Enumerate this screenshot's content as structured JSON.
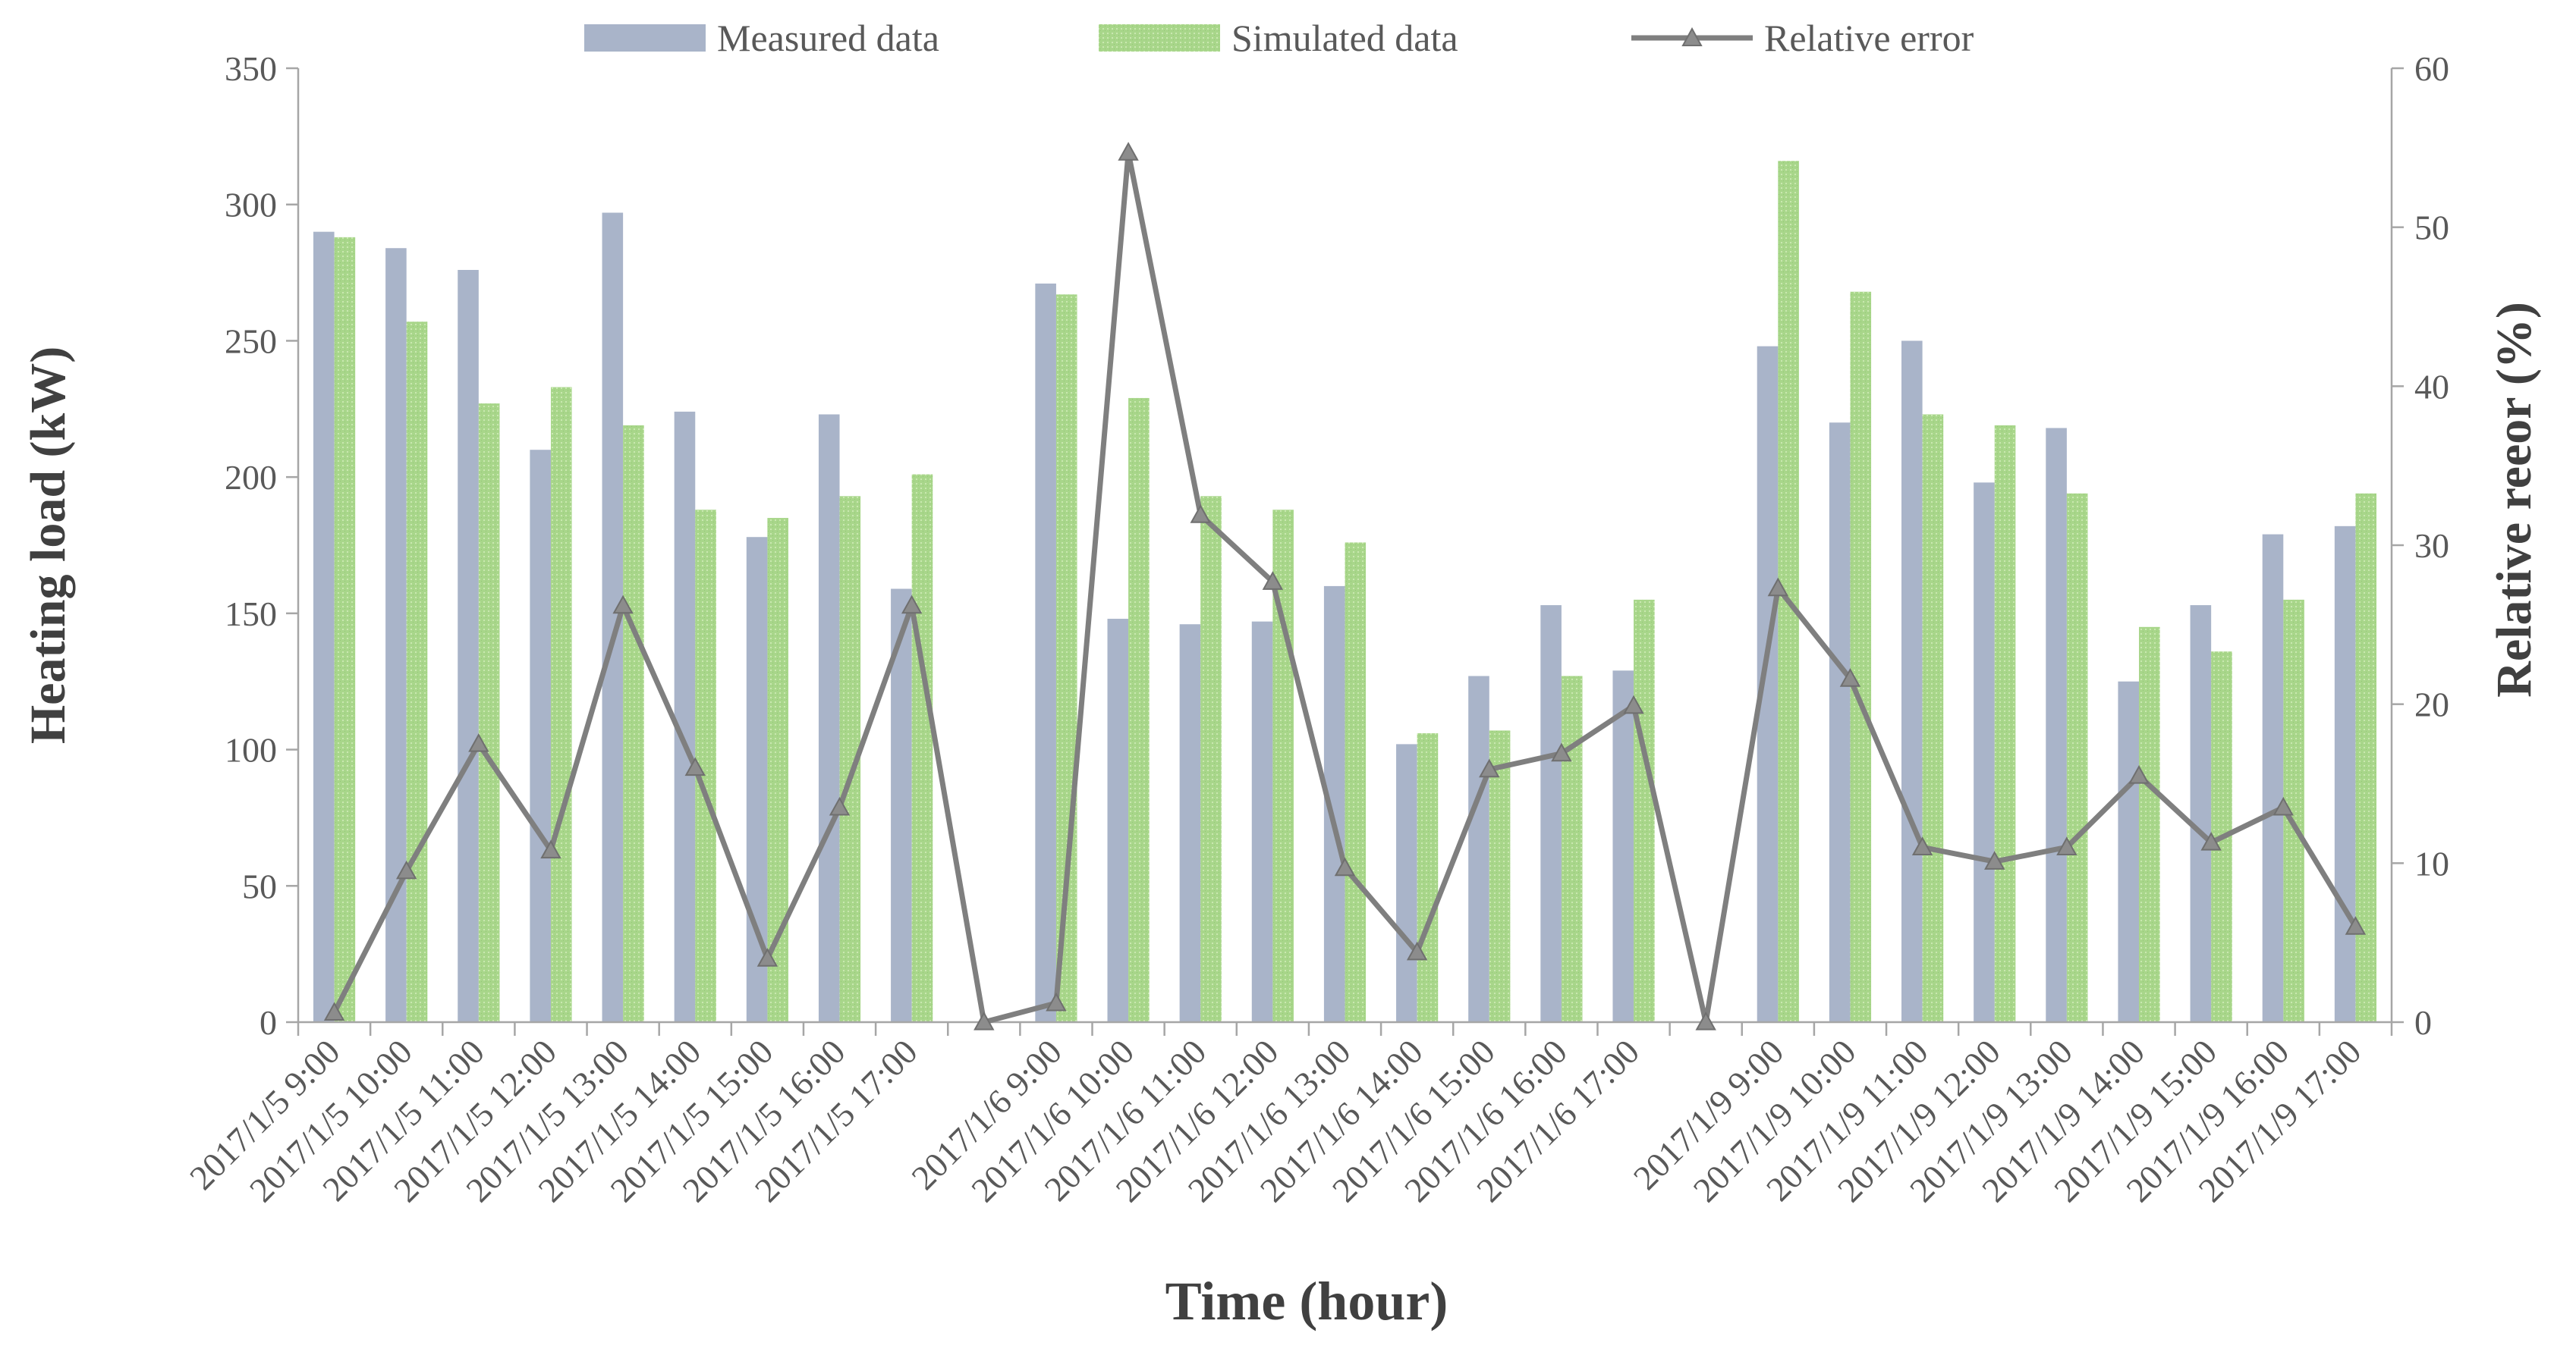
{
  "chart_data": {
    "type": "bar",
    "title": "",
    "xlabel": "Time (hour)",
    "ylabel": "Heating load (kW)",
    "y2label": "Relative reeor (%)",
    "ylim": [
      0,
      350
    ],
    "y2lim": [
      0,
      60
    ],
    "yticks": [
      "0",
      "50",
      "100",
      "150",
      "200",
      "250",
      "300",
      "350"
    ],
    "y2ticks": [
      "0",
      "10",
      "20",
      "30",
      "40",
      "50",
      "60"
    ],
    "legend_position": "top",
    "categories": [
      "2017/1/5 9:00",
      "2017/1/5 10:00",
      "2017/1/5 11:00",
      "2017/1/5 12:00",
      "2017/1/5 13:00",
      "2017/1/5 14:00",
      "2017/1/5 15:00",
      "2017/1/5 16:00",
      "2017/1/5 17:00",
      "",
      "2017/1/6 9:00",
      "2017/1/6 10:00",
      "2017/1/6 11:00",
      "2017/1/6 12:00",
      "2017/1/6 13:00",
      "2017/1/6 14:00",
      "2017/1/6 15:00",
      "2017/1/6 16:00",
      "2017/1/6 17:00",
      "",
      "2017/1/9 9:00",
      "2017/1/9 10:00",
      "2017/1/9 11:00",
      "2017/1/9 12:00",
      "2017/1/9 13:00",
      "2017/1/9 14:00",
      "2017/1/9 15:00",
      "2017/1/9 16:00",
      "2017/1/9 17:00"
    ],
    "series": [
      {
        "name": "Measured data",
        "kind": "bar",
        "axis": "left",
        "color": "#a9b4c9",
        "values": [
          290,
          284,
          276,
          210,
          297,
          224,
          178,
          223,
          159,
          null,
          271,
          148,
          146,
          147,
          160,
          102,
          127,
          153,
          129,
          null,
          248,
          220,
          250,
          198,
          218,
          125,
          153,
          179,
          182
        ]
      },
      {
        "name": "Simulated  data",
        "kind": "bar",
        "axis": "left",
        "color": "#a8d68a",
        "values": [
          288,
          257,
          227,
          233,
          219,
          188,
          185,
          193,
          201,
          null,
          267,
          229,
          193,
          188,
          176,
          106,
          107,
          127,
          155,
          null,
          316,
          268,
          223,
          219,
          194,
          145,
          136,
          155,
          194
        ]
      },
      {
        "name": "Relative error",
        "kind": "line",
        "axis": "right",
        "color": "#7f7f7f",
        "values": [
          0.6,
          9.5,
          17.5,
          10.8,
          26.2,
          16.0,
          4.0,
          13.5,
          26.2,
          0,
          1.2,
          54.7,
          31.9,
          27.7,
          9.7,
          4.4,
          15.9,
          16.9,
          19.9,
          0,
          27.3,
          21.6,
          11.0,
          10.1,
          11.0,
          15.5,
          11.3,
          13.5,
          6.0
        ]
      }
    ]
  }
}
